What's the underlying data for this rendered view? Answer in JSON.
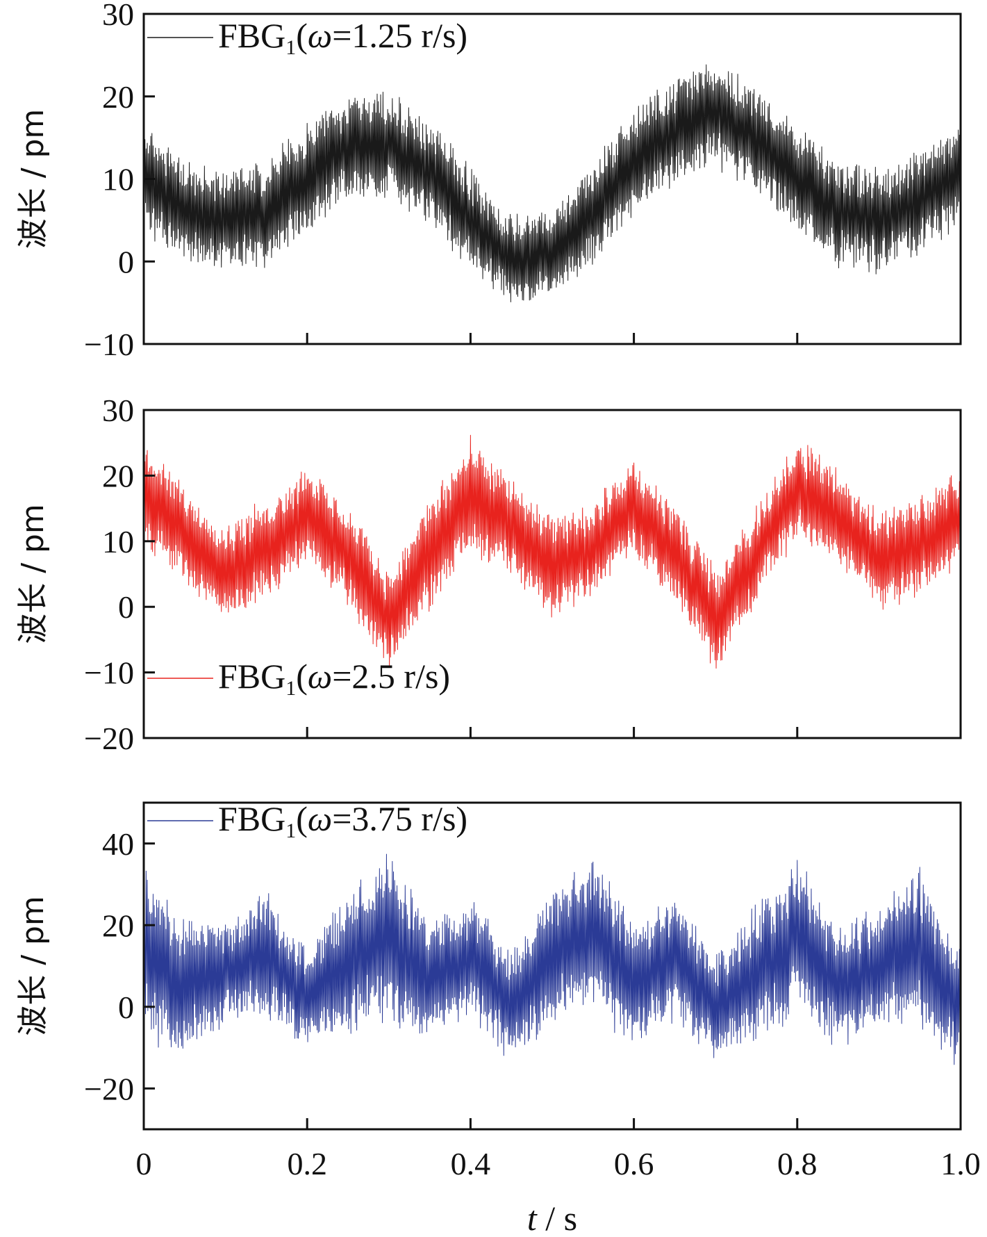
{
  "chart_data": [
    {
      "type": "line",
      "ylabel": "波长 / pm",
      "xlabel": "",
      "xlim": [
        0,
        1.0
      ],
      "ylim": [
        -10,
        30
      ],
      "yticks": [
        "30",
        "20",
        "10",
        "0",
        "−10"
      ],
      "ytick_values": [
        30,
        20,
        10,
        0,
        -10
      ],
      "xtick_values": [
        0,
        0.2,
        0.4,
        0.6,
        0.8,
        1.0
      ],
      "legend_position": "top-left",
      "grid": false,
      "series": [
        {
          "name": "FBG1(ω=1.25 r/s)",
          "legend": {
            "base": "FBG",
            "sub": "1",
            "open": "(",
            "omega": "ω",
            "rest": "=1.25 r/s)"
          },
          "color": "#1a1a1a",
          "envelope": {
            "t": [
              0,
              0.05,
              0.1,
              0.15,
              0.2,
              0.25,
              0.3,
              0.35,
              0.4,
              0.45,
              0.5,
              0.55,
              0.6,
              0.65,
              0.7,
              0.75,
              0.8,
              0.85,
              0.9,
              0.95,
              1.0
            ],
            "mean": [
              10,
              6,
              5,
              6,
              10,
              14,
              14,
              11,
              5,
              0,
              1,
              6,
              12,
              16,
              18,
              15,
              10,
              6,
              5,
              7,
              11
            ],
            "amplitude": [
              6,
              6,
              6,
              6,
              6,
              6,
              6,
              6,
              6,
              5,
              5,
              6,
              6,
              6,
              6,
              6,
              6,
              6,
              6,
              6,
              6
            ]
          }
        }
      ]
    },
    {
      "type": "line",
      "ylabel": "波长 / pm",
      "xlabel": "",
      "xlim": [
        0,
        1.0
      ],
      "ylim": [
        -20,
        30
      ],
      "yticks": [
        "30",
        "20",
        "10",
        "0",
        "−10",
        "−20"
      ],
      "ytick_values": [
        30,
        20,
        10,
        0,
        -10,
        -20
      ],
      "xtick_values": [
        0,
        0.2,
        0.4,
        0.6,
        0.8,
        1.0
      ],
      "legend_position": "bottom-left",
      "grid": false,
      "series": [
        {
          "name": "FBG1(ω=2.5 r/s)",
          "legend": {
            "base": "FBG",
            "sub": "1",
            "open": "(",
            "omega": "ω",
            "rest": "=2.5 r/s)"
          },
          "color": "#e8231e",
          "envelope": {
            "t": [
              0,
              0.05,
              0.1,
              0.15,
              0.2,
              0.25,
              0.3,
              0.35,
              0.4,
              0.45,
              0.5,
              0.55,
              0.6,
              0.65,
              0.7,
              0.75,
              0.8,
              0.85,
              0.9,
              0.95,
              1.0
            ],
            "mean": [
              17,
              11,
              5,
              9,
              14,
              8,
              -2,
              8,
              17,
              12,
              6,
              9,
              15,
              8,
              -2,
              8,
              18,
              14,
              7,
              9,
              14
            ],
            "amplitude": [
              7,
              7,
              7,
              7,
              7,
              7,
              7,
              8,
              8,
              7,
              7,
              7,
              7,
              7,
              7,
              7,
              7,
              7,
              7,
              7,
              7
            ]
          }
        }
      ]
    },
    {
      "type": "line",
      "ylabel": "波长 / pm",
      "xlabel": "t / s",
      "xlim": [
        0,
        1.0
      ],
      "ylim": [
        -30,
        50
      ],
      "yticks": [
        "40",
        "20",
        "0",
        "−20"
      ],
      "ytick_values": [
        40,
        20,
        0,
        -20
      ],
      "xticks": [
        "0",
        "0.2",
        "0.4",
        "0.6",
        "0.8",
        "1.0"
      ],
      "xtick_values": [
        0,
        0.2,
        0.4,
        0.6,
        0.8,
        1.0
      ],
      "legend_position": "top-left",
      "grid": false,
      "series": [
        {
          "name": "FBG1(ω=3.75 r/s)",
          "legend": {
            "base": "FBG",
            "sub": "1",
            "open": "(",
            "omega": "ω",
            "rest": "=3.75 r/s)"
          },
          "color": "#2b3b96",
          "envelope": {
            "t": [
              0,
              0.05,
              0.1,
              0.15,
              0.2,
              0.25,
              0.3,
              0.35,
              0.4,
              0.45,
              0.5,
              0.55,
              0.6,
              0.65,
              0.7,
              0.75,
              0.8,
              0.85,
              0.9,
              0.95,
              1.0
            ],
            "mean": [
              14,
              5,
              8,
              13,
              2,
              10,
              18,
              6,
              12,
              0,
              12,
              19,
              5,
              12,
              0,
              8,
              18,
              5,
              10,
              14,
              0
            ],
            "amplitude": [
              20,
              16,
              12,
              14,
              12,
              16,
              20,
              14,
              14,
              12,
              16,
              18,
              14,
              14,
              12,
              16,
              18,
              14,
              14,
              18,
              14
            ]
          }
        }
      ]
    }
  ],
  "x_axis": {
    "tick_labels": [
      "0",
      "0.2",
      "0.4",
      "0.6",
      "0.8",
      "1.0"
    ],
    "title_italic": "t",
    "title_rest": " / s"
  }
}
